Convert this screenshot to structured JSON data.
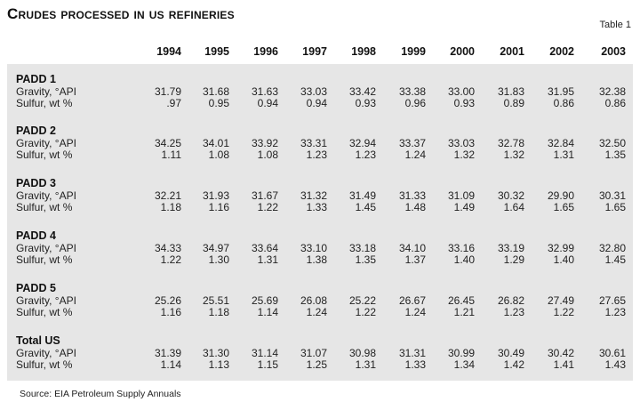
{
  "title": "Crudes processed in US refineries",
  "table_label": "Table 1",
  "years": [
    "1994",
    "1995",
    "1996",
    "1997",
    "1998",
    "1999",
    "2000",
    "2001",
    "2002",
    "2003"
  ],
  "groups": [
    {
      "name": "PADD 1",
      "rows": [
        {
          "label": "Gravity, °API",
          "values": [
            "31.79",
            "31.68",
            "31.63",
            "33.03",
            "33.42",
            "33.38",
            "33.00",
            "31.83",
            "31.95",
            "32.38"
          ]
        },
        {
          "label": "Sulfur, wt %",
          "values": [
            ".97",
            "0.95",
            "0.94",
            "0.94",
            "0.93",
            "0.96",
            "0.93",
            "0.89",
            "0.86",
            "0.86"
          ]
        }
      ]
    },
    {
      "name": "PADD 2",
      "rows": [
        {
          "label": "Gravity, °API",
          "values": [
            "34.25",
            "34.01",
            "33.92",
            "33.31",
            "32.94",
            "33.37",
            "33.03",
            "32.78",
            "32.84",
            "32.50"
          ]
        },
        {
          "label": "Sulfur, wt %",
          "values": [
            "1.11",
            "1.08",
            "1.08",
            "1.23",
            "1.23",
            "1.24",
            "1.32",
            "1.32",
            "1.31",
            "1.35"
          ]
        }
      ]
    },
    {
      "name": "PADD 3",
      "rows": [
        {
          "label": "Gravity, °API",
          "values": [
            "32.21",
            "31.93",
            "31.67",
            "31.32",
            "31.49",
            "31.33",
            "31.09",
            "30.32",
            "29.90",
            "30.31"
          ]
        },
        {
          "label": "Sulfur, wt %",
          "values": [
            "1.18",
            "1.16",
            "1.22",
            "1.33",
            "1.45",
            "1.48",
            "1.49",
            "1.64",
            "1.65",
            "1.65"
          ]
        }
      ]
    },
    {
      "name": "PADD 4",
      "rows": [
        {
          "label": "Gravity, °API",
          "values": [
            "34.33",
            "34.97",
            "33.64",
            "33.10",
            "33.18",
            "34.10",
            "33.16",
            "33.19",
            "32.99",
            "32.80"
          ]
        },
        {
          "label": "Sulfur, wt %",
          "values": [
            "1.22",
            "1.30",
            "1.31",
            "1.38",
            "1.35",
            "1.37",
            "1.40",
            "1.29",
            "1.40",
            "1.45"
          ]
        }
      ]
    },
    {
      "name": "PADD 5",
      "rows": [
        {
          "label": "Gravity, °API",
          "values": [
            "25.26",
            "25.51",
            "25.69",
            "26.08",
            "25.22",
            "26.67",
            "26.45",
            "26.82",
            "27.49",
            "27.65"
          ]
        },
        {
          "label": "Sulfur, wt %",
          "values": [
            "1.16",
            "1.18",
            "1.14",
            "1.24",
            "1.22",
            "1.24",
            "1.21",
            "1.23",
            "1.22",
            "1.23"
          ]
        }
      ]
    },
    {
      "name": "Total US",
      "rows": [
        {
          "label": "Gravity, °API",
          "values": [
            "31.39",
            "31.30",
            "31.14",
            "31.07",
            "30.98",
            "31.31",
            "30.99",
            "30.49",
            "30.42",
            "30.61"
          ]
        },
        {
          "label": "Sulfur, wt %",
          "values": [
            "1.14",
            "1.13",
            "1.15",
            "1.25",
            "1.31",
            "1.33",
            "1.34",
            "1.42",
            "1.41",
            "1.43"
          ]
        }
      ]
    }
  ],
  "source": "Source: EIA Petroleum Supply Annuals"
}
